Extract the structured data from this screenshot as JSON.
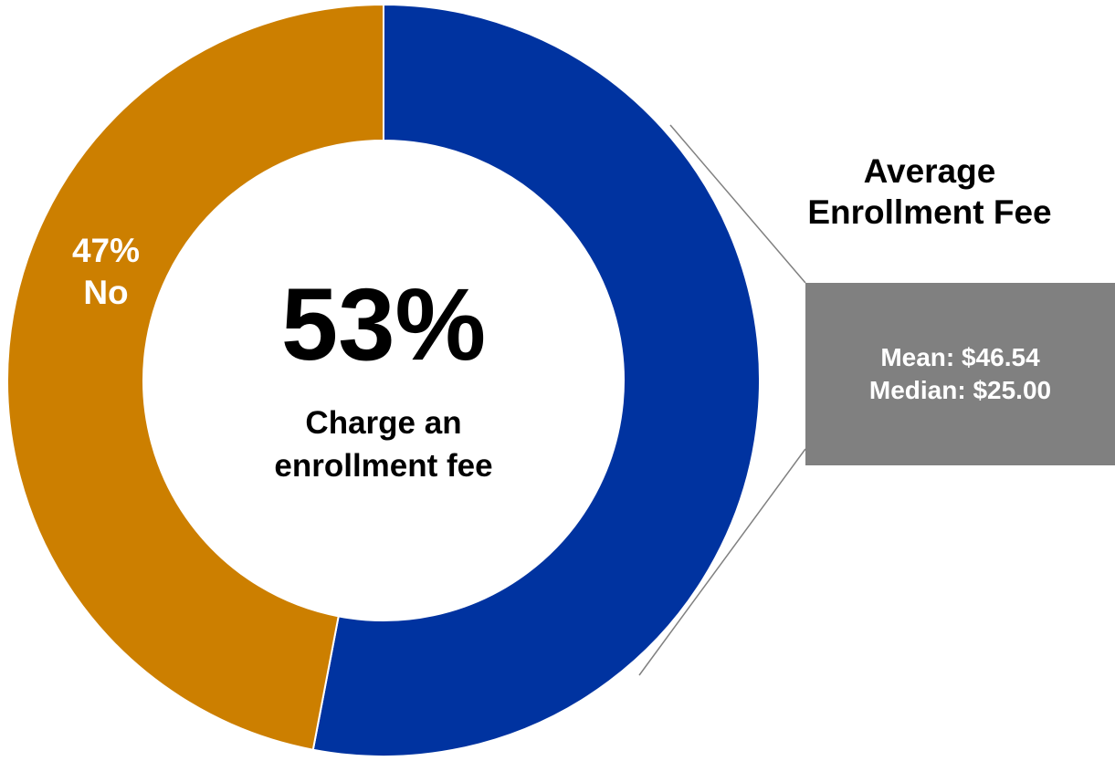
{
  "chart_data": {
    "type": "pie",
    "donut": true,
    "slices": [
      {
        "label": "Charge an enrollment fee",
        "value": 53,
        "value_label": "53%",
        "color": "#0033A0"
      },
      {
        "label": "No",
        "value": 47,
        "value_label": "47%",
        "color": "#CC7F00"
      }
    ],
    "center": {
      "value_label": "53%",
      "text_line1": "Charge an",
      "text_line2": "enrollment fee"
    },
    "no_slice": {
      "value_label": "47%",
      "text": "No"
    },
    "callout": {
      "title_line1": "Average",
      "title_line2": "Enrollment Fee",
      "mean": "Mean: $46.54",
      "median": "Median: $25.00",
      "box_color": "#808080"
    }
  }
}
